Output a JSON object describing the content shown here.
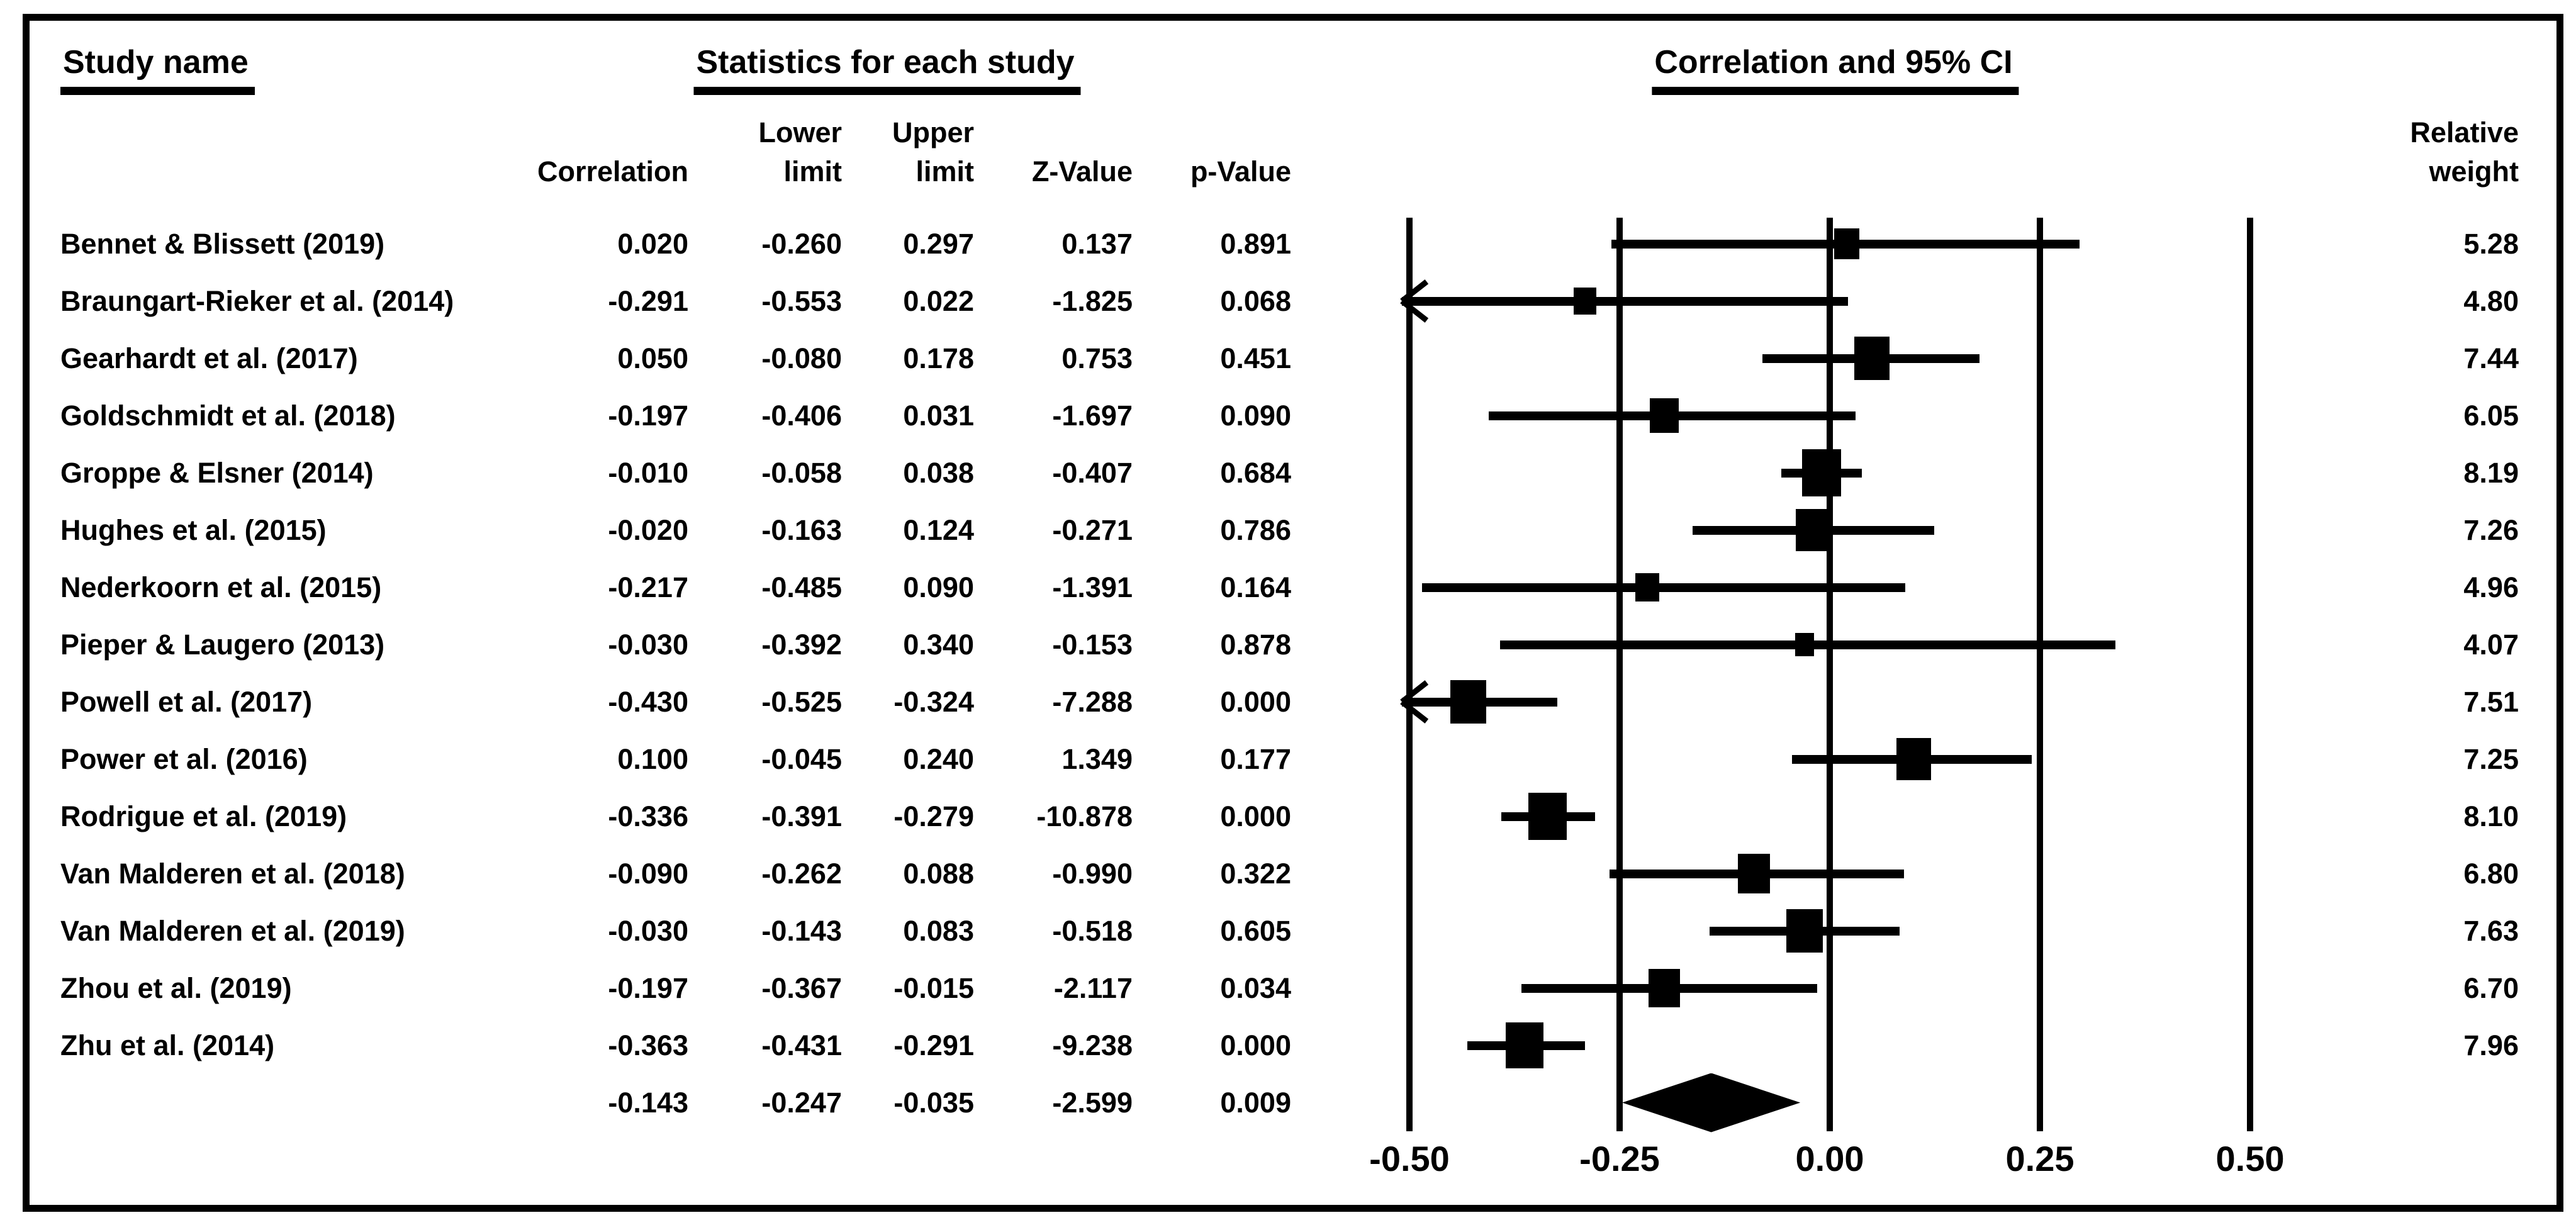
{
  "figure": {
    "study_col_title": "Study name",
    "stats_col_title": "Statistics for each study",
    "plot_col_title": "Correlation and 95% CI",
    "col_headers": {
      "correlation": "Correlation",
      "lower_line1": "Lower",
      "lower_line2": "limit",
      "upper_line1": "Upper",
      "upper_line2": "limit",
      "z_value": "Z-Value",
      "p_value": "p-Value",
      "relative_line1": "Relative",
      "relative_line2": "weight"
    },
    "colors": {
      "ink": "#000000",
      "background": "#ffffff"
    }
  },
  "chart_data": {
    "type": "forest",
    "title": "Correlation and 95% CI",
    "x_axis": {
      "range": [
        -0.5,
        0.5
      ],
      "clip_min": -0.5,
      "ticks": [
        {
          "value": -0.5,
          "label": "-0.50"
        },
        {
          "value": -0.25,
          "label": "-0.25"
        },
        {
          "value": 0.0,
          "label": "0.00"
        },
        {
          "value": 0.25,
          "label": "0.25"
        },
        {
          "value": 0.5,
          "label": "0.50"
        }
      ]
    },
    "studies": [
      {
        "name": "Bennet & Blissett (2019)",
        "correlation": 0.02,
        "lower": -0.26,
        "upper": 0.297,
        "z": 0.137,
        "p": 0.891,
        "weight": 5.28
      },
      {
        "name": "Braungart-Rieker et al. (2014)",
        "correlation": -0.291,
        "lower": -0.553,
        "upper": 0.022,
        "z": -1.825,
        "p": 0.068,
        "weight": 4.8
      },
      {
        "name": "Gearhardt et al. (2017)",
        "correlation": 0.05,
        "lower": -0.08,
        "upper": 0.178,
        "z": 0.753,
        "p": 0.451,
        "weight": 7.44
      },
      {
        "name": "Goldschmidt et al. (2018)",
        "correlation": -0.197,
        "lower": -0.406,
        "upper": 0.031,
        "z": -1.697,
        "p": 0.09,
        "weight": 6.05
      },
      {
        "name": "Groppe & Elsner (2014)",
        "correlation": -0.01,
        "lower": -0.058,
        "upper": 0.038,
        "z": -0.407,
        "p": 0.684,
        "weight": 8.19
      },
      {
        "name": "Hughes et al. (2015)",
        "correlation": -0.02,
        "lower": -0.163,
        "upper": 0.124,
        "z": -0.271,
        "p": 0.786,
        "weight": 7.26
      },
      {
        "name": "Nederkoorn et al. (2015)",
        "correlation": -0.217,
        "lower": -0.485,
        "upper": 0.09,
        "z": -1.391,
        "p": 0.164,
        "weight": 4.96
      },
      {
        "name": "Pieper & Laugero (2013)",
        "correlation": -0.03,
        "lower": -0.392,
        "upper": 0.34,
        "z": -0.153,
        "p": 0.878,
        "weight": 4.07
      },
      {
        "name": "Powell et al. (2017)",
        "correlation": -0.43,
        "lower": -0.525,
        "upper": -0.324,
        "z": -7.288,
        "p": 0.0,
        "weight": 7.51
      },
      {
        "name": "Power et al. (2016)",
        "correlation": 0.1,
        "lower": -0.045,
        "upper": 0.24,
        "z": 1.349,
        "p": 0.177,
        "weight": 7.25
      },
      {
        "name": "Rodrigue et al. (2019)",
        "correlation": -0.336,
        "lower": -0.391,
        "upper": -0.279,
        "z": -10.878,
        "p": 0.0,
        "weight": 8.1
      },
      {
        "name": "Van Malderen et al. (2018)",
        "correlation": -0.09,
        "lower": -0.262,
        "upper": 0.088,
        "z": -0.99,
        "p": 0.322,
        "weight": 6.8
      },
      {
        "name": "Van Malderen et al. (2019)",
        "correlation": -0.03,
        "lower": -0.143,
        "upper": 0.083,
        "z": -0.518,
        "p": 0.605,
        "weight": 7.63
      },
      {
        "name": "Zhou et al. (2019)",
        "correlation": -0.197,
        "lower": -0.367,
        "upper": -0.015,
        "z": -2.117,
        "p": 0.034,
        "weight": 6.7
      },
      {
        "name": "Zhu et al. (2014)",
        "correlation": -0.363,
        "lower": -0.431,
        "upper": -0.291,
        "z": -9.238,
        "p": 0.0,
        "weight": 7.96
      }
    ],
    "summary": {
      "correlation": -0.143,
      "lower": -0.247,
      "upper": -0.035,
      "z": -2.599,
      "p": 0.009,
      "marker": "diamond"
    },
    "layout_hints": {
      "grid": "vertical-lines-at-ticks",
      "marker": "black-squares-sized-by-weight",
      "clipped_ci_arrow": "left"
    }
  }
}
